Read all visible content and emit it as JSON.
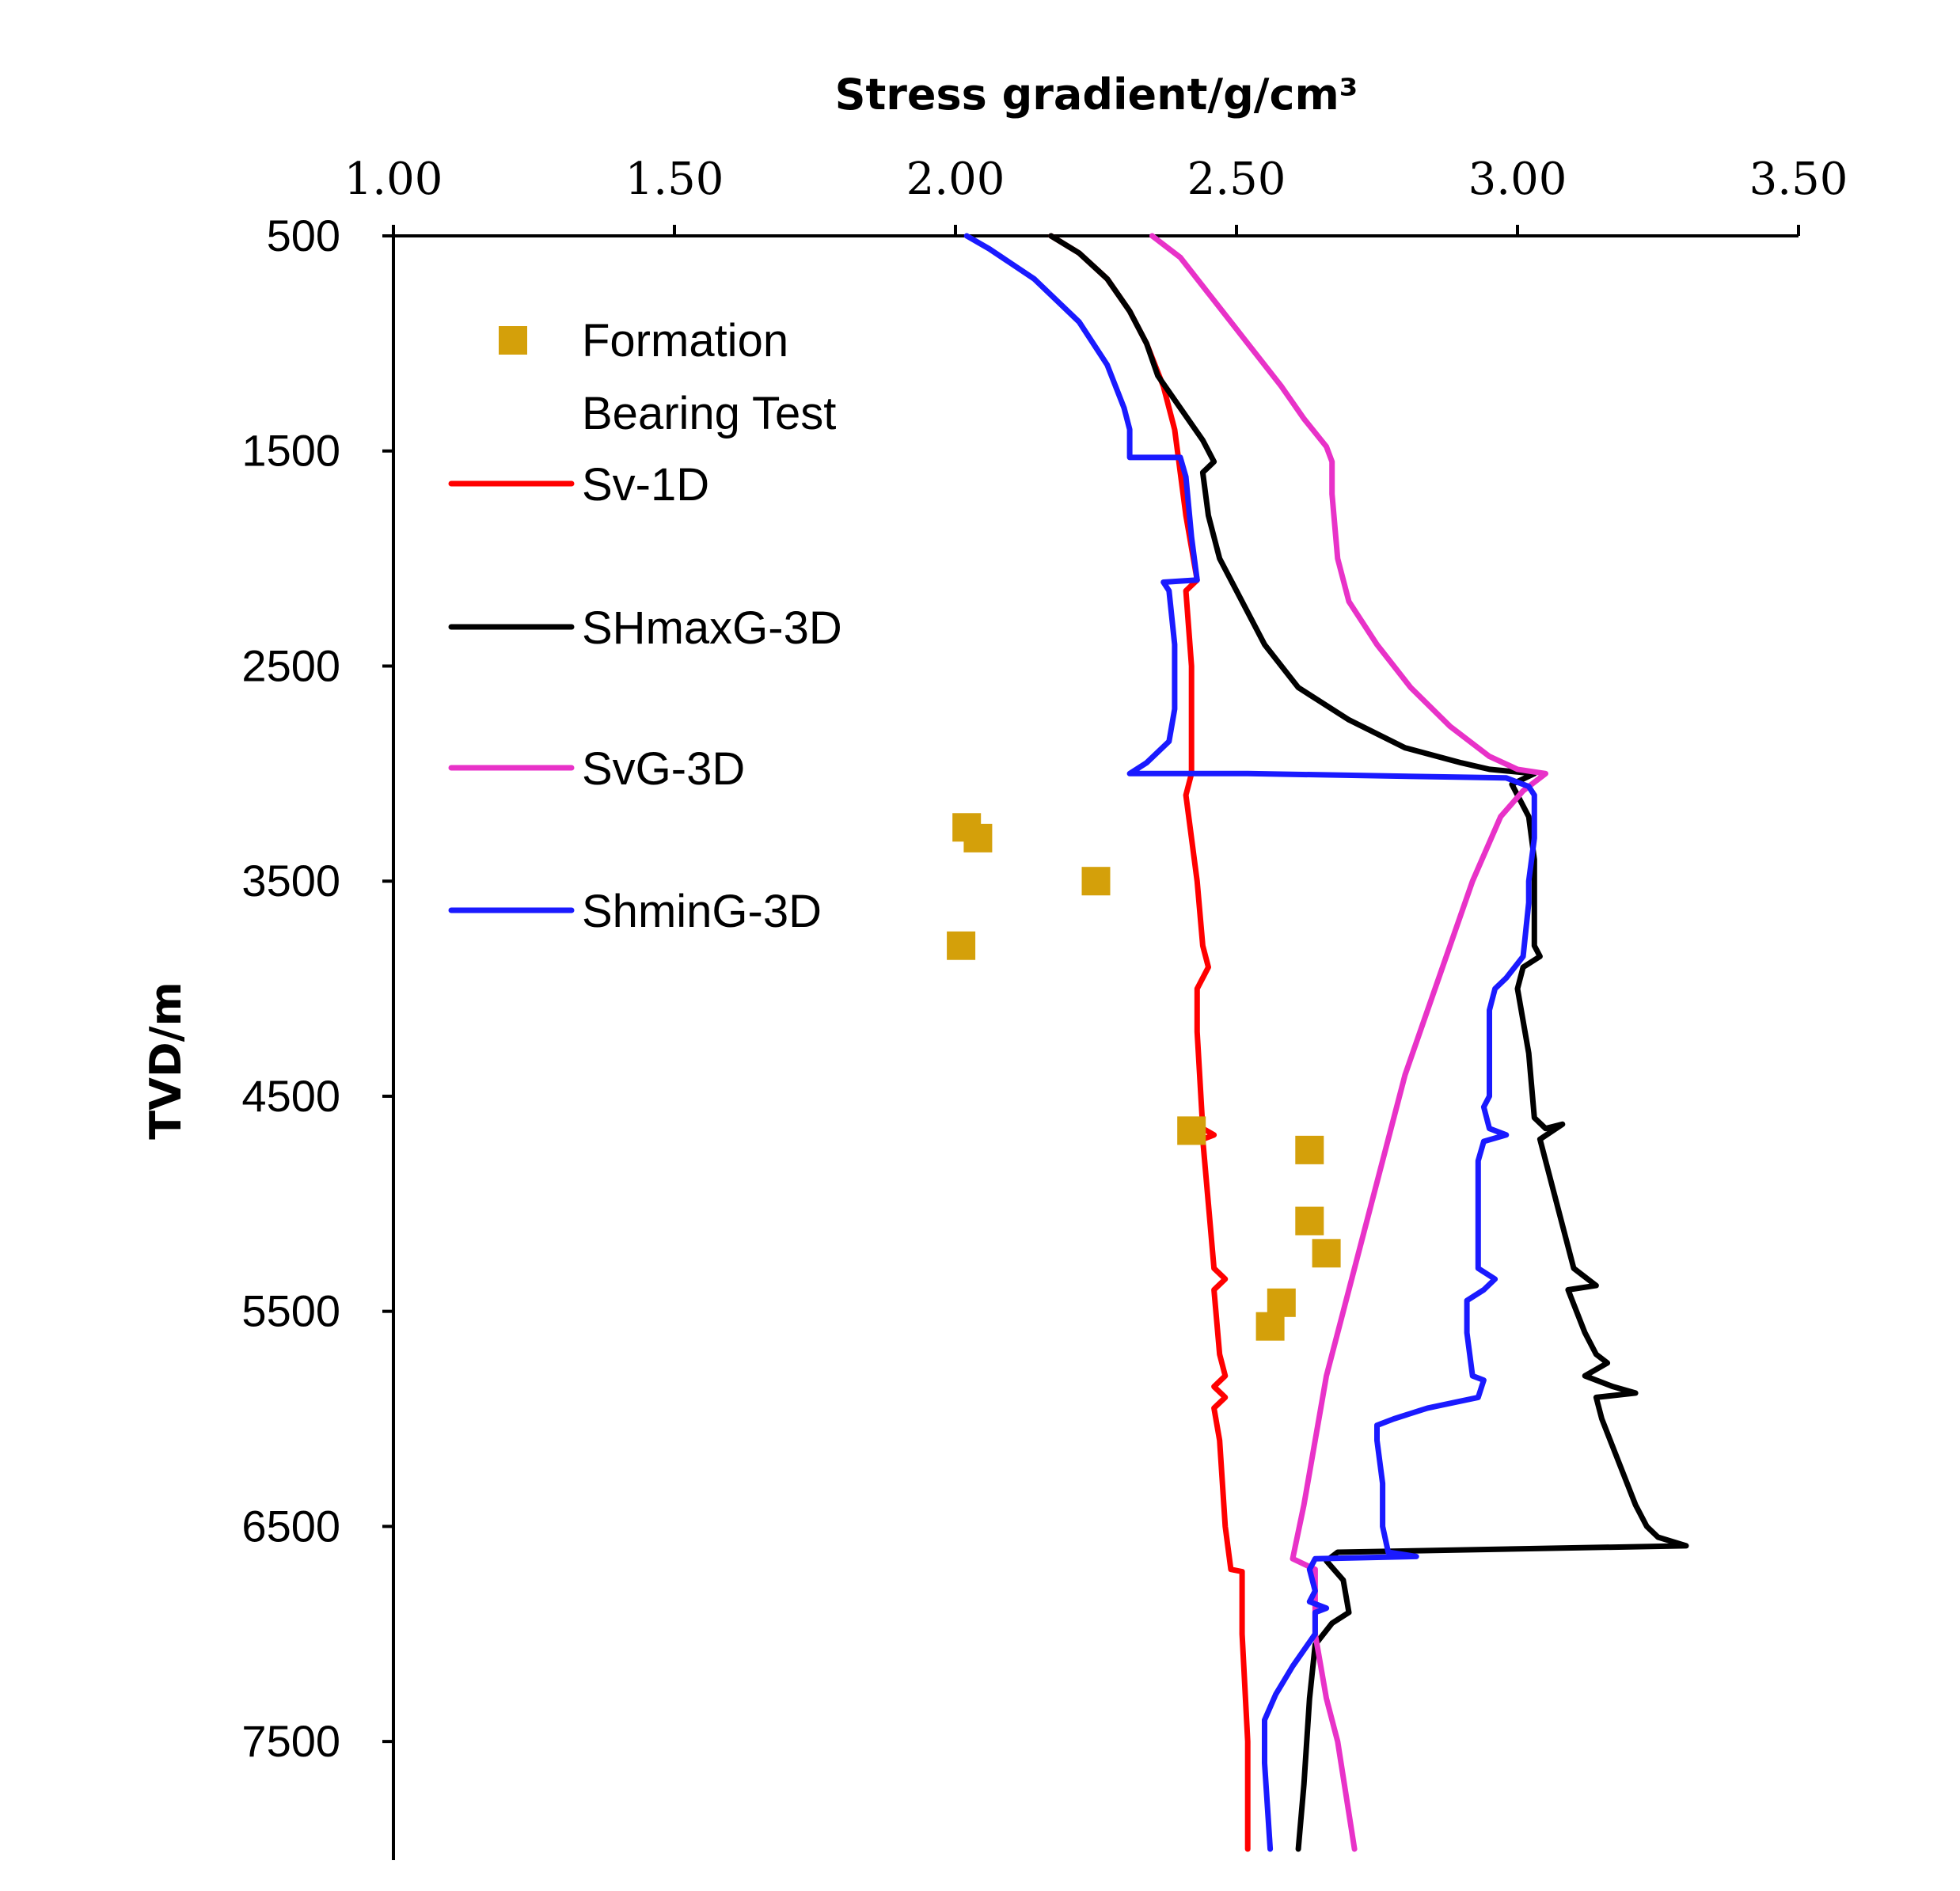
{
  "chart_data": {
    "type": "line",
    "title": "Stress gradient/g/cm³",
    "xlabel": "Stress gradient/g/cm³",
    "ylabel": "TVD/m",
    "x_axis_position": "top",
    "y_axis_inverted": true,
    "xlim": [
      1.0,
      3.5
    ],
    "ylim": [
      500,
      8000
    ],
    "x_ticks": [
      "1.00",
      "1.50",
      "2.00",
      "2.50",
      "3.00",
      "3.50"
    ],
    "y_ticks": [
      "500",
      "1500",
      "2500",
      "3500",
      "4500",
      "5500",
      "6500",
      "7500"
    ],
    "legend_position": "top-left",
    "series": [
      {
        "name": "Sv-1D",
        "color": "#ff0000",
        "style": "line",
        "points": [
          [
            2.17,
            500
          ],
          [
            2.22,
            580
          ],
          [
            2.27,
            700
          ],
          [
            2.31,
            850
          ],
          [
            2.34,
            1000
          ],
          [
            2.37,
            1200
          ],
          [
            2.39,
            1400
          ],
          [
            2.4,
            1600
          ],
          [
            2.41,
            1800
          ],
          [
            2.42,
            1950
          ],
          [
            2.43,
            2100
          ],
          [
            2.41,
            2150
          ],
          [
            2.42,
            2500
          ],
          [
            2.42,
            3000
          ],
          [
            2.41,
            3100
          ],
          [
            2.43,
            3500
          ],
          [
            2.44,
            3800
          ],
          [
            2.45,
            3900
          ],
          [
            2.43,
            4000
          ],
          [
            2.43,
            4200
          ],
          [
            2.44,
            4650
          ],
          [
            2.46,
            4680
          ],
          [
            2.44,
            4700
          ],
          [
            2.45,
            5000
          ],
          [
            2.46,
            5300
          ],
          [
            2.48,
            5350
          ],
          [
            2.46,
            5400
          ],
          [
            2.47,
            5700
          ],
          [
            2.48,
            5800
          ],
          [
            2.46,
            5850
          ],
          [
            2.48,
            5900
          ],
          [
            2.46,
            5950
          ],
          [
            2.47,
            6100
          ],
          [
            2.48,
            6500
          ],
          [
            2.49,
            6700
          ],
          [
            2.51,
            6710
          ],
          [
            2.51,
            7000
          ],
          [
            2.52,
            7500
          ],
          [
            2.52,
            8000
          ]
        ]
      },
      {
        "name": "SHmaxG-3D",
        "color": "#000000",
        "style": "line",
        "points": [
          [
            2.17,
            500
          ],
          [
            2.22,
            580
          ],
          [
            2.27,
            700
          ],
          [
            2.31,
            850
          ],
          [
            2.34,
            1000
          ],
          [
            2.36,
            1150
          ],
          [
            2.4,
            1300
          ],
          [
            2.44,
            1450
          ],
          [
            2.46,
            1550
          ],
          [
            2.44,
            1600
          ],
          [
            2.45,
            1800
          ],
          [
            2.47,
            2000
          ],
          [
            2.51,
            2200
          ],
          [
            2.55,
            2400
          ],
          [
            2.61,
            2600
          ],
          [
            2.7,
            2750
          ],
          [
            2.8,
            2880
          ],
          [
            2.9,
            2950
          ],
          [
            2.95,
            2980
          ],
          [
            3.03,
            3000
          ],
          [
            2.99,
            3050
          ],
          [
            3.0,
            3100
          ],
          [
            3.02,
            3200
          ],
          [
            3.03,
            3400
          ],
          [
            3.03,
            3600
          ],
          [
            3.03,
            3800
          ],
          [
            3.04,
            3850
          ],
          [
            3.01,
            3900
          ],
          [
            3.0,
            4000
          ],
          [
            3.02,
            4300
          ],
          [
            3.03,
            4600
          ],
          [
            3.05,
            4650
          ],
          [
            3.08,
            4630
          ],
          [
            3.04,
            4700
          ],
          [
            3.07,
            5000
          ],
          [
            3.1,
            5300
          ],
          [
            3.14,
            5380
          ],
          [
            3.09,
            5400
          ],
          [
            3.12,
            5600
          ],
          [
            3.14,
            5700
          ],
          [
            3.16,
            5740
          ],
          [
            3.12,
            5800
          ],
          [
            3.17,
            5850
          ],
          [
            3.21,
            5880
          ],
          [
            3.14,
            5900
          ],
          [
            3.15,
            6000
          ],
          [
            3.18,
            6200
          ],
          [
            3.21,
            6400
          ],
          [
            3.23,
            6500
          ],
          [
            3.25,
            6550
          ],
          [
            3.3,
            6590
          ],
          [
            2.68,
            6620
          ],
          [
            2.66,
            6660
          ],
          [
            2.69,
            6750
          ],
          [
            2.7,
            6900
          ],
          [
            2.67,
            6950
          ],
          [
            2.64,
            7050
          ],
          [
            2.63,
            7300
          ],
          [
            2.62,
            7700
          ],
          [
            2.61,
            8000
          ]
        ]
      },
      {
        "name": "SvG-3D",
        "color": "#e832c8",
        "style": "line",
        "points": [
          [
            2.35,
            500
          ],
          [
            2.4,
            600
          ],
          [
            2.46,
            800
          ],
          [
            2.52,
            1000
          ],
          [
            2.58,
            1200
          ],
          [
            2.62,
            1350
          ],
          [
            2.66,
            1480
          ],
          [
            2.67,
            1550
          ],
          [
            2.67,
            1700
          ],
          [
            2.68,
            2000
          ],
          [
            2.7,
            2200
          ],
          [
            2.75,
            2400
          ],
          [
            2.81,
            2600
          ],
          [
            2.88,
            2780
          ],
          [
            2.95,
            2920
          ],
          [
            3.0,
            2980
          ],
          [
            3.05,
            3000
          ],
          [
            3.01,
            3080
          ],
          [
            2.97,
            3200
          ],
          [
            2.92,
            3500
          ],
          [
            2.88,
            3800
          ],
          [
            2.84,
            4100
          ],
          [
            2.8,
            4400
          ],
          [
            2.77,
            4700
          ],
          [
            2.74,
            5000
          ],
          [
            2.72,
            5200
          ],
          [
            2.69,
            5500
          ],
          [
            2.66,
            5800
          ],
          [
            2.64,
            6100
          ],
          [
            2.62,
            6400
          ],
          [
            2.6,
            6650
          ],
          [
            2.64,
            6700
          ],
          [
            2.64,
            7000
          ],
          [
            2.66,
            7300
          ],
          [
            2.68,
            7500
          ],
          [
            2.71,
            8000
          ]
        ]
      },
      {
        "name": "ShminG-3D",
        "color": "#1a1aff",
        "style": "line",
        "points": [
          [
            2.02,
            500
          ],
          [
            2.06,
            560
          ],
          [
            2.14,
            700
          ],
          [
            2.22,
            900
          ],
          [
            2.27,
            1100
          ],
          [
            2.3,
            1300
          ],
          [
            2.31,
            1400
          ],
          [
            2.31,
            1530
          ],
          [
            2.4,
            1530
          ],
          [
            2.41,
            1620
          ],
          [
            2.42,
            1900
          ],
          [
            2.43,
            2100
          ],
          [
            2.37,
            2110
          ],
          [
            2.38,
            2150
          ],
          [
            2.39,
            2400
          ],
          [
            2.39,
            2700
          ],
          [
            2.38,
            2850
          ],
          [
            2.34,
            2950
          ],
          [
            2.31,
            3000
          ],
          [
            2.52,
            3000
          ],
          [
            2.98,
            3020
          ],
          [
            3.02,
            3060
          ],
          [
            3.03,
            3100
          ],
          [
            3.03,
            3300
          ],
          [
            3.02,
            3500
          ],
          [
            3.02,
            3600
          ],
          [
            3.01,
            3850
          ],
          [
            2.98,
            3950
          ],
          [
            2.96,
            4000
          ],
          [
            2.95,
            4100
          ],
          [
            2.95,
            4500
          ],
          [
            2.94,
            4550
          ],
          [
            2.95,
            4650
          ],
          [
            2.98,
            4680
          ],
          [
            2.94,
            4710
          ],
          [
            2.93,
            4800
          ],
          [
            2.93,
            5300
          ],
          [
            2.96,
            5350
          ],
          [
            2.94,
            5400
          ],
          [
            2.91,
            5450
          ],
          [
            2.91,
            5600
          ],
          [
            2.92,
            5800
          ],
          [
            2.94,
            5820
          ],
          [
            2.93,
            5900
          ],
          [
            2.84,
            5950
          ],
          [
            2.78,
            6000
          ],
          [
            2.75,
            6030
          ],
          [
            2.75,
            6100
          ],
          [
            2.76,
            6300
          ],
          [
            2.76,
            6500
          ],
          [
            2.77,
            6620
          ],
          [
            2.82,
            6640
          ],
          [
            2.64,
            6650
          ],
          [
            2.63,
            6700
          ],
          [
            2.64,
            6800
          ],
          [
            2.63,
            6850
          ],
          [
            2.66,
            6880
          ],
          [
            2.64,
            6900
          ],
          [
            2.64,
            7000
          ],
          [
            2.6,
            7150
          ],
          [
            2.57,
            7280
          ],
          [
            2.55,
            7400
          ],
          [
            2.55,
            7600
          ],
          [
            2.56,
            8000
          ]
        ]
      },
      {
        "name": "Formation Bearing Test",
        "color": "#d4a00a",
        "style": "marker-square",
        "points": [
          [
            2.02,
            3250
          ],
          [
            2.04,
            3300
          ],
          [
            2.25,
            3500
          ],
          [
            2.01,
            3800
          ],
          [
            2.42,
            4660
          ],
          [
            2.63,
            4750
          ],
          [
            2.63,
            5080
          ],
          [
            2.66,
            5230
          ],
          [
            2.58,
            5460
          ],
          [
            2.56,
            5570
          ]
        ]
      }
    ]
  }
}
